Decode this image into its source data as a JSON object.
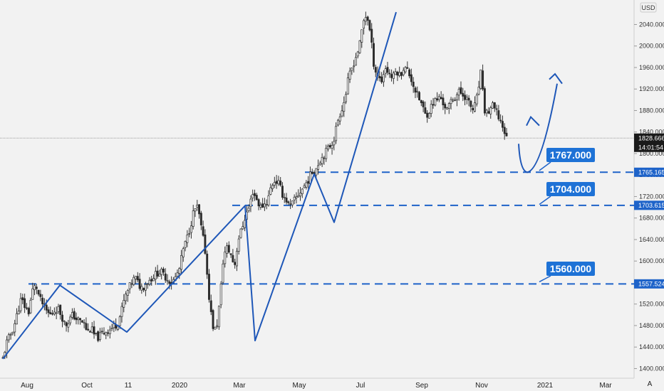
{
  "currency": "USD",
  "corner_label": "A",
  "current_price": {
    "label": "1828.666",
    "countdown": "14:01:54",
    "value": 1828.666
  },
  "chart_data": {
    "type": "candlestick",
    "x_ticks": [
      "Aug",
      "Oct",
      "11",
      "2020",
      "Mar",
      "May",
      "Jul",
      "Sep",
      "Nov",
      "2021",
      "Mar"
    ],
    "y_ticks": [
      1400,
      1440,
      1480,
      1520,
      1560,
      1600,
      1640,
      1680,
      1720,
      1760,
      1800,
      1840,
      1880,
      1920,
      1960,
      2000,
      2040
    ],
    "y_tick_labels": [
      "1400.000",
      "1440.000",
      "1480.000",
      "1520.000",
      "1560.000",
      "1600.000",
      "1640.000",
      "1680.000",
      "1720.000",
      "1760.000",
      "1800.000",
      "1840.000",
      "1880.000",
      "1920.000",
      "1960.000",
      "2000.000",
      "2040.000"
    ],
    "ylim": [
      1390,
      2075
    ],
    "levels": [
      {
        "value": 1765.165,
        "axis_label": "1765.165",
        "callout": "1767.000"
      },
      {
        "value": 1703.615,
        "axis_label": "1703.615",
        "callout": "1704.000"
      },
      {
        "value": 1557.524,
        "axis_label": "1557.524",
        "callout": "1560.000"
      }
    ],
    "close_path": [
      1418,
      1448,
      1462,
      1478,
      1505,
      1530,
      1515,
      1505,
      1545,
      1555,
      1530,
      1518,
      1505,
      1500,
      1508,
      1512,
      1498,
      1480,
      1490,
      1500,
      1492,
      1488,
      1485,
      1468,
      1475,
      1460,
      1458,
      1465,
      1470,
      1472,
      1478,
      1482,
      1500,
      1528,
      1545,
      1560,
      1570,
      1555,
      1550,
      1560,
      1565,
      1572,
      1578,
      1580,
      1572,
      1565,
      1560,
      1570,
      1585,
      1620,
      1640,
      1665,
      1695,
      1700,
      1660,
      1620,
      1540,
      1480,
      1470,
      1525,
      1610,
      1625,
      1612,
      1590,
      1640,
      1660,
      1685,
      1700,
      1730,
      1715,
      1700,
      1705,
      1712,
      1740,
      1750,
      1745,
      1725,
      1715,
      1700,
      1710,
      1720,
      1730,
      1740,
      1750,
      1765,
      1770,
      1785,
      1795,
      1805,
      1815,
      1825,
      1860,
      1880,
      1900,
      1940,
      1960,
      1980,
      2000,
      2045,
      2060,
      2020,
      1960,
      1945,
      1935,
      1960,
      1950,
      1940,
      1955,
      1945,
      1960,
      1955,
      1940,
      1920,
      1905,
      1890,
      1870,
      1880,
      1895,
      1900,
      1905,
      1890,
      1880,
      1900,
      1905,
      1915,
      1910,
      1905,
      1890,
      1880,
      1905,
      1950,
      1880,
      1875,
      1890,
      1880,
      1865,
      1850,
      1828
    ]
  }
}
